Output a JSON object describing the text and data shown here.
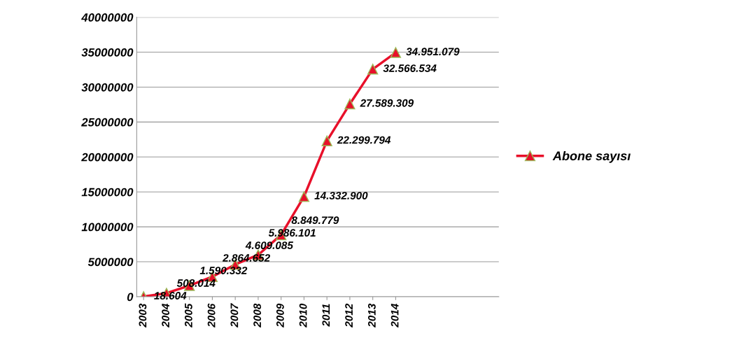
{
  "chart_data": {
    "type": "line",
    "categories": [
      "2003",
      "2004",
      "2005",
      "2006",
      "2007",
      "2008",
      "2009",
      "2010",
      "2011",
      "2012",
      "2013",
      "2014"
    ],
    "series": [
      {
        "name": "Abone sayısı",
        "color": "#e8102a",
        "values": [
          18604,
          508014,
          1590332,
          2864652,
          4609085,
          5986101,
          8849779,
          14332900,
          22299794,
          27589309,
          32566534,
          34951079
        ],
        "value_labels": [
          "18.604",
          "508.014",
          "1.590.332",
          "2.864.652",
          "4.609.085",
          "5.986.101",
          "8.849.779",
          "14.332.900",
          "22.299.794",
          "27.589.309",
          "32.566.534",
          "34.951.079"
        ]
      }
    ],
    "ylim": [
      0,
      40000000
    ],
    "yticks": [
      0,
      5000000,
      10000000,
      15000000,
      20000000,
      25000000,
      30000000,
      35000000,
      40000000
    ],
    "grid": "y",
    "legend": "right",
    "marker": "triangle",
    "line_style": "solid"
  }
}
